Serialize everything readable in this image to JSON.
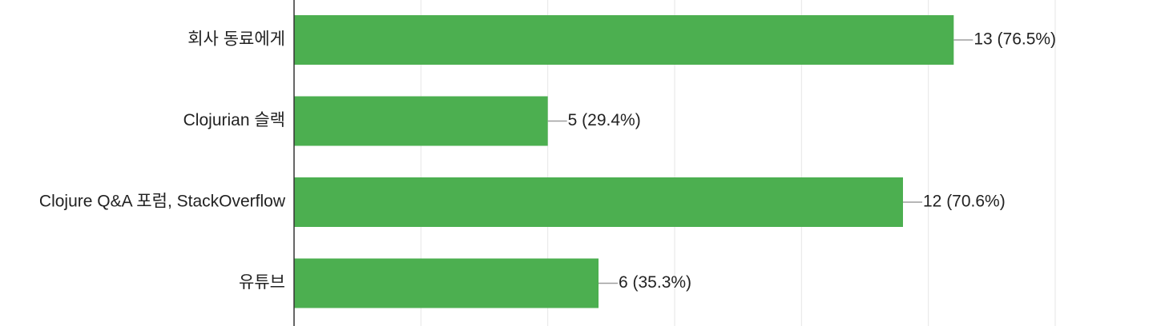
{
  "chart_data": {
    "type": "bar",
    "orientation": "horizontal",
    "categories": [
      "회사 동료에게",
      "Clojurian 슬랙",
      "Clojure Q&A 포럼, StackOverflow",
      "유튜브"
    ],
    "values": [
      13,
      5,
      12,
      6
    ],
    "value_labels": [
      "13 (76.5%)",
      "5 (29.4%)",
      "12 (70.6%)",
      "6 (35.3%)"
    ],
    "xlim": [
      0,
      15
    ],
    "grid": true,
    "legend": "none",
    "bar_color": "#4caf50"
  }
}
